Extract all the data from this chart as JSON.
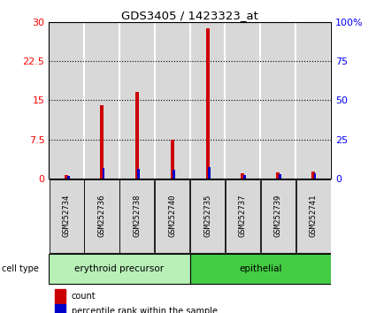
{
  "title": "GDS3405 / 1423323_at",
  "samples": [
    "GSM252734",
    "GSM252736",
    "GSM252738",
    "GSM252740",
    "GSM252735",
    "GSM252737",
    "GSM252739",
    "GSM252741"
  ],
  "count_values": [
    0.7,
    14.0,
    16.5,
    7.5,
    28.7,
    1.0,
    1.2,
    1.3
  ],
  "percentile_values": [
    1.5,
    6.5,
    6.0,
    5.5,
    7.5,
    2.0,
    2.5,
    3.0
  ],
  "left_ylim": [
    0,
    30
  ],
  "right_ylim": [
    0,
    100
  ],
  "left_yticks": [
    0,
    7.5,
    15,
    22.5,
    30
  ],
  "right_yticks": [
    0,
    25,
    50,
    75,
    100
  ],
  "left_yticklabels": [
    "0",
    "7.5",
    "15",
    "22.5",
    "30"
  ],
  "right_yticklabels": [
    "0",
    "25",
    "50",
    "75",
    "100%"
  ],
  "group1_label": "erythroid precursor",
  "group2_label": "epithelial",
  "group1_color": "#b8f0b8",
  "group2_color": "#44cc44",
  "group1_indices": [
    0,
    1,
    2,
    3
  ],
  "group2_indices": [
    4,
    5,
    6,
    7
  ],
  "count_color": "#cc0000",
  "percentile_color": "#0000cc",
  "bg_color": "#d8d8d8",
  "bar_bg": "#ffffff",
  "legend_count": "count",
  "legend_pct": "percentile rank within the sample"
}
